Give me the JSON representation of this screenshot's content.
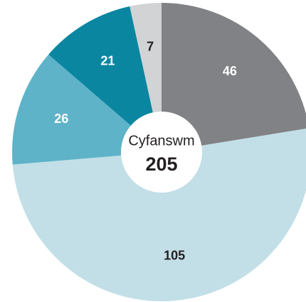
{
  "chart_data": {
    "type": "donut",
    "values": [
      46,
      105,
      26,
      21,
      7
    ],
    "colors": [
      "#808285",
      "#c2dfe7",
      "#5eb3c8",
      "#0b86a1",
      "#d1d3d4"
    ],
    "label_colors": [
      "#ffffff",
      "#231f20",
      "#ffffff",
      "#ffffff",
      "#231f20"
    ],
    "center_label": "Cyfanswm",
    "total": 205
  }
}
